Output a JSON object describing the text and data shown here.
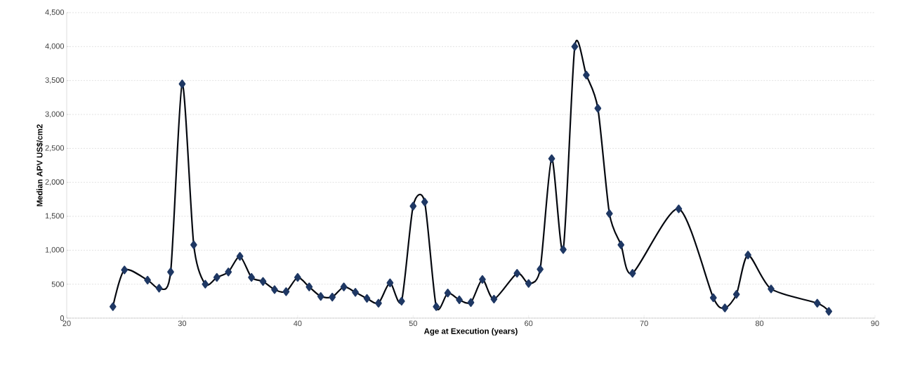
{
  "chart_data": {
    "type": "line",
    "xlabel": "Age at Execution (years)",
    "ylabel": "Median APV US$/cm2",
    "x": [
      24,
      25,
      27,
      28,
      29,
      30,
      31,
      32,
      33,
      34,
      35,
      36,
      37,
      38,
      39,
      40,
      41,
      42,
      43,
      44,
      45,
      46,
      47,
      48,
      49,
      50,
      51,
      52,
      53,
      54,
      55,
      56,
      57,
      59,
      60,
      61,
      62,
      63,
      64,
      65,
      66,
      67,
      68,
      69,
      73,
      76,
      77,
      78,
      79,
      81,
      85,
      86
    ],
    "series": [
      {
        "color": "#1f3864",
        "values": [
          170,
          710,
          560,
          440,
          680,
          3450,
          1080,
          500,
          600,
          680,
          910,
          600,
          540,
          420,
          390,
          600,
          460,
          320,
          310,
          460,
          380,
          290,
          220,
          520,
          250,
          1650,
          1710,
          170,
          370,
          270,
          230,
          570,
          280,
          660,
          510,
          720,
          2350,
          1010,
          4000,
          3580,
          3090,
          1540,
          1080,
          660,
          1610,
          300,
          150,
          350,
          930,
          430,
          220,
          100
        ]
      }
    ],
    "xlim": [
      20,
      90
    ],
    "xticks": [
      20,
      30,
      40,
      50,
      60,
      70,
      80,
      90
    ],
    "ylim": [
      0,
      4500
    ],
    "yticks": [
      0,
      {
        "value": 500,
        "label": "500"
      },
      {
        "value": 1000,
        "label": "1,000"
      },
      {
        "value": 1500,
        "label": "1,500"
      },
      {
        "value": 2000,
        "label": "2,000"
      },
      {
        "value": 2500,
        "label": "2,500"
      },
      {
        "value": 3000,
        "label": "3,000"
      },
      {
        "value": 3500,
        "label": "3,500"
      },
      {
        "value": 4000,
        "label": "4,000"
      },
      {
        "value": 4500,
        "label": "4,500"
      }
    ],
    "grid": "y",
    "marker": "diamond",
    "line_style": "solid"
  }
}
